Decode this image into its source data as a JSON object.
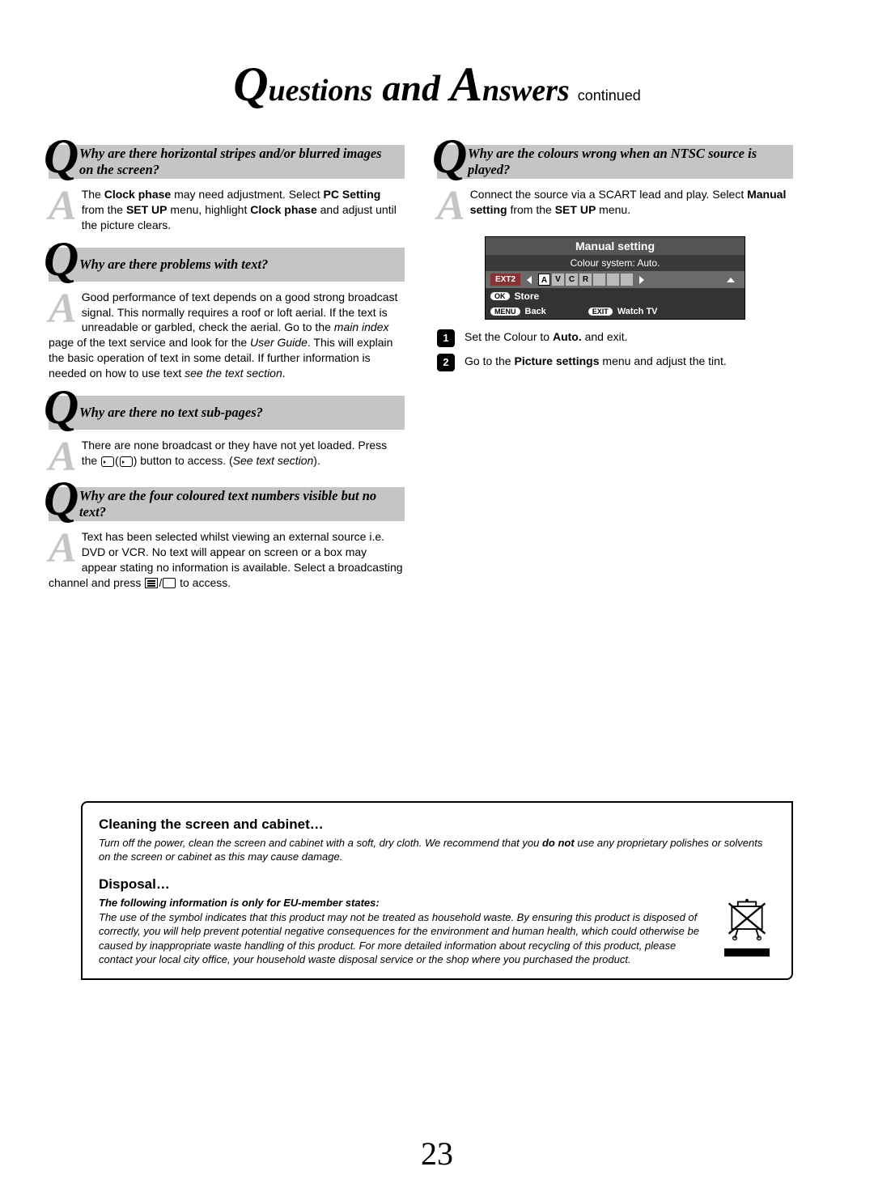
{
  "title": {
    "q_initial": "Q",
    "q_rest": "uestions",
    "and": "and",
    "a_initial": "A",
    "a_rest": "nswers",
    "continued": "continued"
  },
  "left_qa": [
    {
      "question": "Why are there horizontal stripes and/or blurred images on the screen?",
      "answer_html": "The <b>Clock phase</b> may need adjustment. Select <b>PC Setting</b> from the <b>SET UP</b> menu, highlight <b>Clock phase</b> and adjust until the picture clears."
    },
    {
      "question": "Why are there problems with text?",
      "answer_html": "Good performance of text depends on a good strong broadcast signal. This normally requires a roof or loft aerial. If the text is unreadable or garbled, check the aerial. Go to the <i>main index</i> page of the text service and look for the <i>User Guide</i>. This will explain the basic operation of text in some detail. If further information is needed on how to use text <i>see the text section</i>."
    },
    {
      "question": "Why are there no text sub-pages?",
      "answer_html": "There are none broadcast or they have not yet loaded. Press the <span class='icon-inline sm'></span>(<span class='icon-inline sm'></span>) button to access. (<i>See text section</i>)."
    },
    {
      "question": "Why are the four coloured text numbers visible but no text?",
      "answer_html": "Text has been selected whilst viewing an external source i.e. DVD or VCR. No text will appear on screen or a box may appear stating no information is available. Select a broadcasting channel and press <span class='icon-tele'></span>/<span class='icon-blank'></span> to access."
    }
  ],
  "right_qa": {
    "question": "Why are the colours wrong when an NTSC source is played?",
    "answer_html": "Connect the source via a SCART lead and play. Select <b>Manual setting</b> from the <b>SET UP</b> menu."
  },
  "tv_menu": {
    "title": "Manual setting",
    "subtitle": "Colour system: Auto.",
    "ext_badge": "EXT2",
    "letters": [
      "A",
      "V",
      "C",
      "R"
    ],
    "ok_pill": "OK",
    "store": "Store",
    "menu_pill": "MENU",
    "back": "Back",
    "exit_pill": "EXIT",
    "watch": "Watch TV"
  },
  "steps": [
    {
      "num": "1",
      "html": "Set the Colour to <b>Auto.</b> and exit."
    },
    {
      "num": "2",
      "html": "Go to the <b>Picture settings</b> menu and adjust the tint."
    }
  ],
  "info": {
    "cleaning_title": "Cleaning the screen and cabinet…",
    "cleaning_text_html": "Turn off the power, clean the screen and cabinet with a soft, dry cloth. We recommend that you <b>do not</b> use any proprietary polishes or solvents on the screen or cabinet as this may cause damage.",
    "disposal_title": "Disposal…",
    "disposal_bold": "The following information is only for EU-member states:",
    "disposal_text": "The use of the symbol indicates that this product may not be treated as household waste. By ensuring this product is disposed of correctly, you will help prevent potential negative consequences for the environment and human health, which could otherwise be caused by inappropriate waste handling of this product. For more detailed information about recycling of this product, please contact your local city office, your household waste disposal service or the shop where you purchased the product."
  },
  "page_number": "23"
}
